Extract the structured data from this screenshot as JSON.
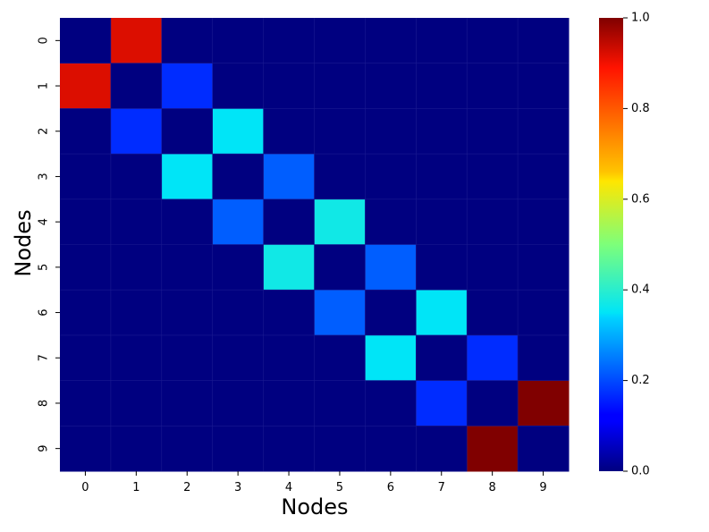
{
  "chart_data": {
    "type": "heatmap",
    "title": "",
    "xlabel": "Nodes",
    "ylabel": "Nodes",
    "x_categories": [
      "0",
      "1",
      "2",
      "3",
      "4",
      "5",
      "6",
      "7",
      "8",
      "9"
    ],
    "y_categories": [
      "0",
      "1",
      "2",
      "3",
      "4",
      "5",
      "6",
      "7",
      "8",
      "9"
    ],
    "values": [
      [
        0,
        0.92,
        0,
        0,
        0,
        0,
        0,
        0,
        0,
        0
      ],
      [
        0.92,
        0,
        0.17,
        0,
        0,
        0,
        0,
        0,
        0,
        0
      ],
      [
        0,
        0.17,
        0,
        0.35,
        0,
        0,
        0,
        0,
        0,
        0
      ],
      [
        0,
        0,
        0.35,
        0,
        0.22,
        0,
        0,
        0,
        0,
        0
      ],
      [
        0,
        0,
        0,
        0.22,
        0,
        0.37,
        0,
        0,
        0,
        0
      ],
      [
        0,
        0,
        0,
        0,
        0.37,
        0,
        0.22,
        0,
        0,
        0
      ],
      [
        0,
        0,
        0,
        0,
        0,
        0.22,
        0,
        0.35,
        0,
        0
      ],
      [
        0,
        0,
        0,
        0,
        0,
        0,
        0.35,
        0,
        0.17,
        0
      ],
      [
        0,
        0,
        0,
        0,
        0,
        0,
        0,
        0.17,
        0,
        1.0
      ],
      [
        0,
        0,
        0,
        0,
        0,
        0,
        0,
        0,
        1.0,
        0
      ]
    ],
    "colormap": "jet",
    "colorbar": {
      "range": [
        0.0,
        1.0
      ],
      "ticks": [
        0.0,
        0.2,
        0.4,
        0.6,
        0.8,
        1.0
      ],
      "tick_labels": [
        "0.0",
        "0.2",
        "0.4",
        "0.6",
        "0.8",
        "1.0"
      ]
    }
  }
}
